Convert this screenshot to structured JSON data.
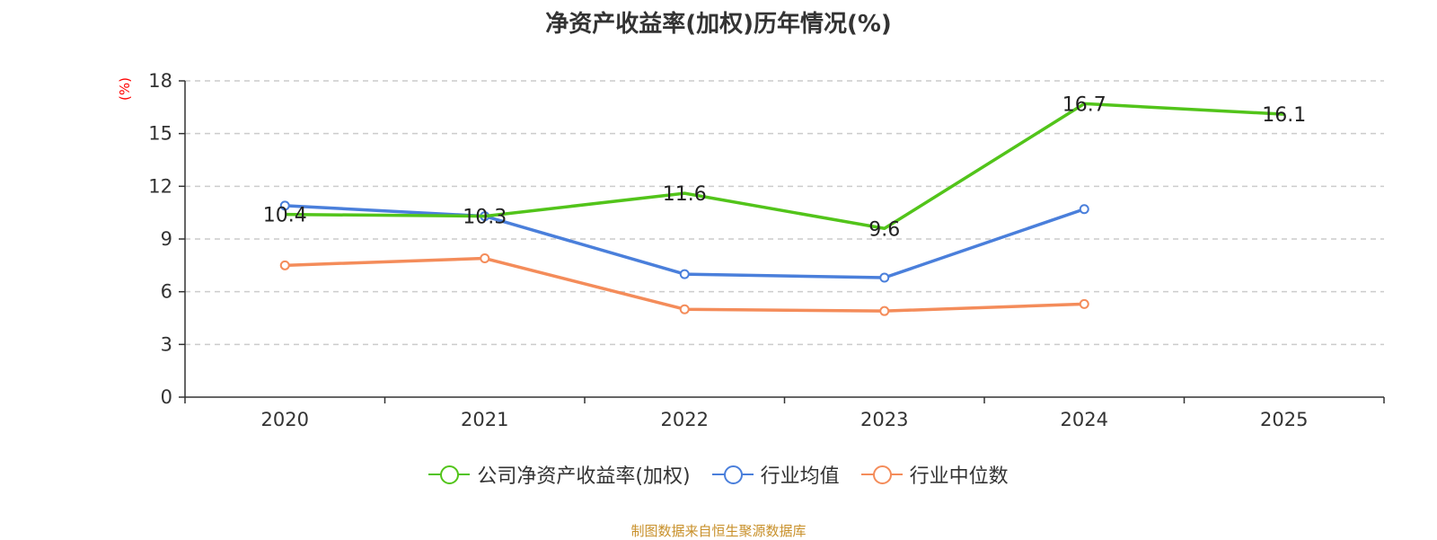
{
  "chart_data": {
    "type": "line",
    "title": "净资产收益率(加权)历年情况(%)",
    "ylabel": "(%)",
    "xlabel": "",
    "categories": [
      "2020",
      "2021",
      "2022",
      "2023",
      "2024",
      "2025"
    ],
    "ylim": [
      0,
      18
    ],
    "yticks": [
      0,
      3,
      6,
      9,
      12,
      15,
      18
    ],
    "grid": true,
    "legend_position": "bottom",
    "series": [
      {
        "name": "公司净资产收益率(加权)",
        "color": "#52c41a",
        "values": [
          10.4,
          10.3,
          11.6,
          9.6,
          16.7,
          16.1
        ],
        "labels": [
          "10.4",
          "10.3",
          "11.6",
          "9.6",
          "16.7",
          "16.1"
        ]
      },
      {
        "name": "行业均值",
        "color": "#4a7fdb",
        "values": [
          10.9,
          10.3,
          7.0,
          6.8,
          10.7,
          null
        ]
      },
      {
        "name": "行业中位数",
        "color": "#f48c5a",
        "values": [
          7.5,
          7.9,
          5.0,
          4.9,
          5.3,
          null
        ]
      }
    ]
  },
  "colors": {
    "axis": "#333333",
    "grid": "#cccccc",
    "ylabel": "#ff0000",
    "source": "#c8902a"
  },
  "source": "制图数据来自恒生聚源数据库"
}
